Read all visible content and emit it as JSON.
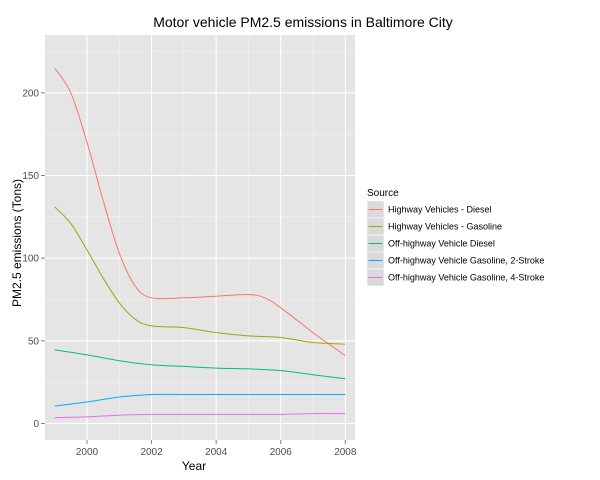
{
  "chart_data": {
    "type": "line",
    "title": "Motor vehicle PM2.5 emissions in Baltimore City",
    "xlabel": "Year",
    "ylabel": "PM2.5 emissions (Tons)",
    "xlim": [
      1998.7,
      2008.3
    ],
    "ylim": [
      -10,
      235
    ],
    "x_ticks": [
      2000,
      2002,
      2004,
      2006,
      2008
    ],
    "y_ticks": [
      0,
      50,
      100,
      150,
      200
    ],
    "grid": true,
    "legend_title": "Source",
    "legend_position": "right",
    "series": [
      {
        "name": "Highway Vehicles - Diesel",
        "color": "#F8766D",
        "points": [
          [
            1999,
            215
          ],
          [
            1999.5,
            200
          ],
          [
            2000,
            170
          ],
          [
            2000.5,
            135
          ],
          [
            2001,
            103
          ],
          [
            2001.5,
            83
          ],
          [
            2002,
            76
          ],
          [
            2003,
            76
          ],
          [
            2004,
            77
          ],
          [
            2005,
            78
          ],
          [
            2005.5,
            76
          ],
          [
            2006,
            70
          ],
          [
            2007,
            55
          ],
          [
            2008,
            41
          ]
        ]
      },
      {
        "name": "Highway Vehicles - Gasoline",
        "color": "#A3A500",
        "points": [
          [
            1999,
            131
          ],
          [
            1999.5,
            121
          ],
          [
            2000,
            105
          ],
          [
            2000.5,
            88
          ],
          [
            2001,
            73
          ],
          [
            2001.5,
            63
          ],
          [
            2002,
            59
          ],
          [
            2003,
            58
          ],
          [
            2004,
            55
          ],
          [
            2005,
            53
          ],
          [
            2006,
            52
          ],
          [
            2007,
            49
          ],
          [
            2008,
            48
          ]
        ]
      },
      {
        "name": "Off-highway Vehicle Diesel",
        "color": "#00BF7D",
        "points": [
          [
            1999,
            44.5
          ],
          [
            2000,
            41.5
          ],
          [
            2001,
            38
          ],
          [
            2002,
            35.5
          ],
          [
            2003,
            34.5
          ],
          [
            2004,
            33.5
          ],
          [
            2005,
            33
          ],
          [
            2006,
            32
          ],
          [
            2007,
            29.5
          ],
          [
            2008,
            27
          ]
        ]
      },
      {
        "name": "Off-highway Vehicle Gasoline, 2-Stroke",
        "color": "#00B0F6",
        "points": [
          [
            1999,
            10.5
          ],
          [
            2000,
            13
          ],
          [
            2001,
            16
          ],
          [
            2002,
            17.5
          ],
          [
            2003,
            17.5
          ],
          [
            2004,
            17.5
          ],
          [
            2005,
            17.5
          ],
          [
            2006,
            17.5
          ],
          [
            2007,
            17.5
          ],
          [
            2008,
            17.5
          ]
        ]
      },
      {
        "name": "Off-highway Vehicle Gasoline, 4-Stroke",
        "color": "#E76BF3",
        "points": [
          [
            1999,
            3.5
          ],
          [
            2000,
            4
          ],
          [
            2001,
            5
          ],
          [
            2002,
            5.5
          ],
          [
            2003,
            5.5
          ],
          [
            2004,
            5.5
          ],
          [
            2005,
            5.5
          ],
          [
            2006,
            5.5
          ],
          [
            2007,
            6
          ],
          [
            2008,
            6
          ]
        ]
      }
    ]
  },
  "colors": {
    "panel_background": "#E5E5E5",
    "grid_major": "#FFFFFF",
    "grid_minor": "#F2F2F2",
    "legend_key_background": "#D9D9D9"
  }
}
